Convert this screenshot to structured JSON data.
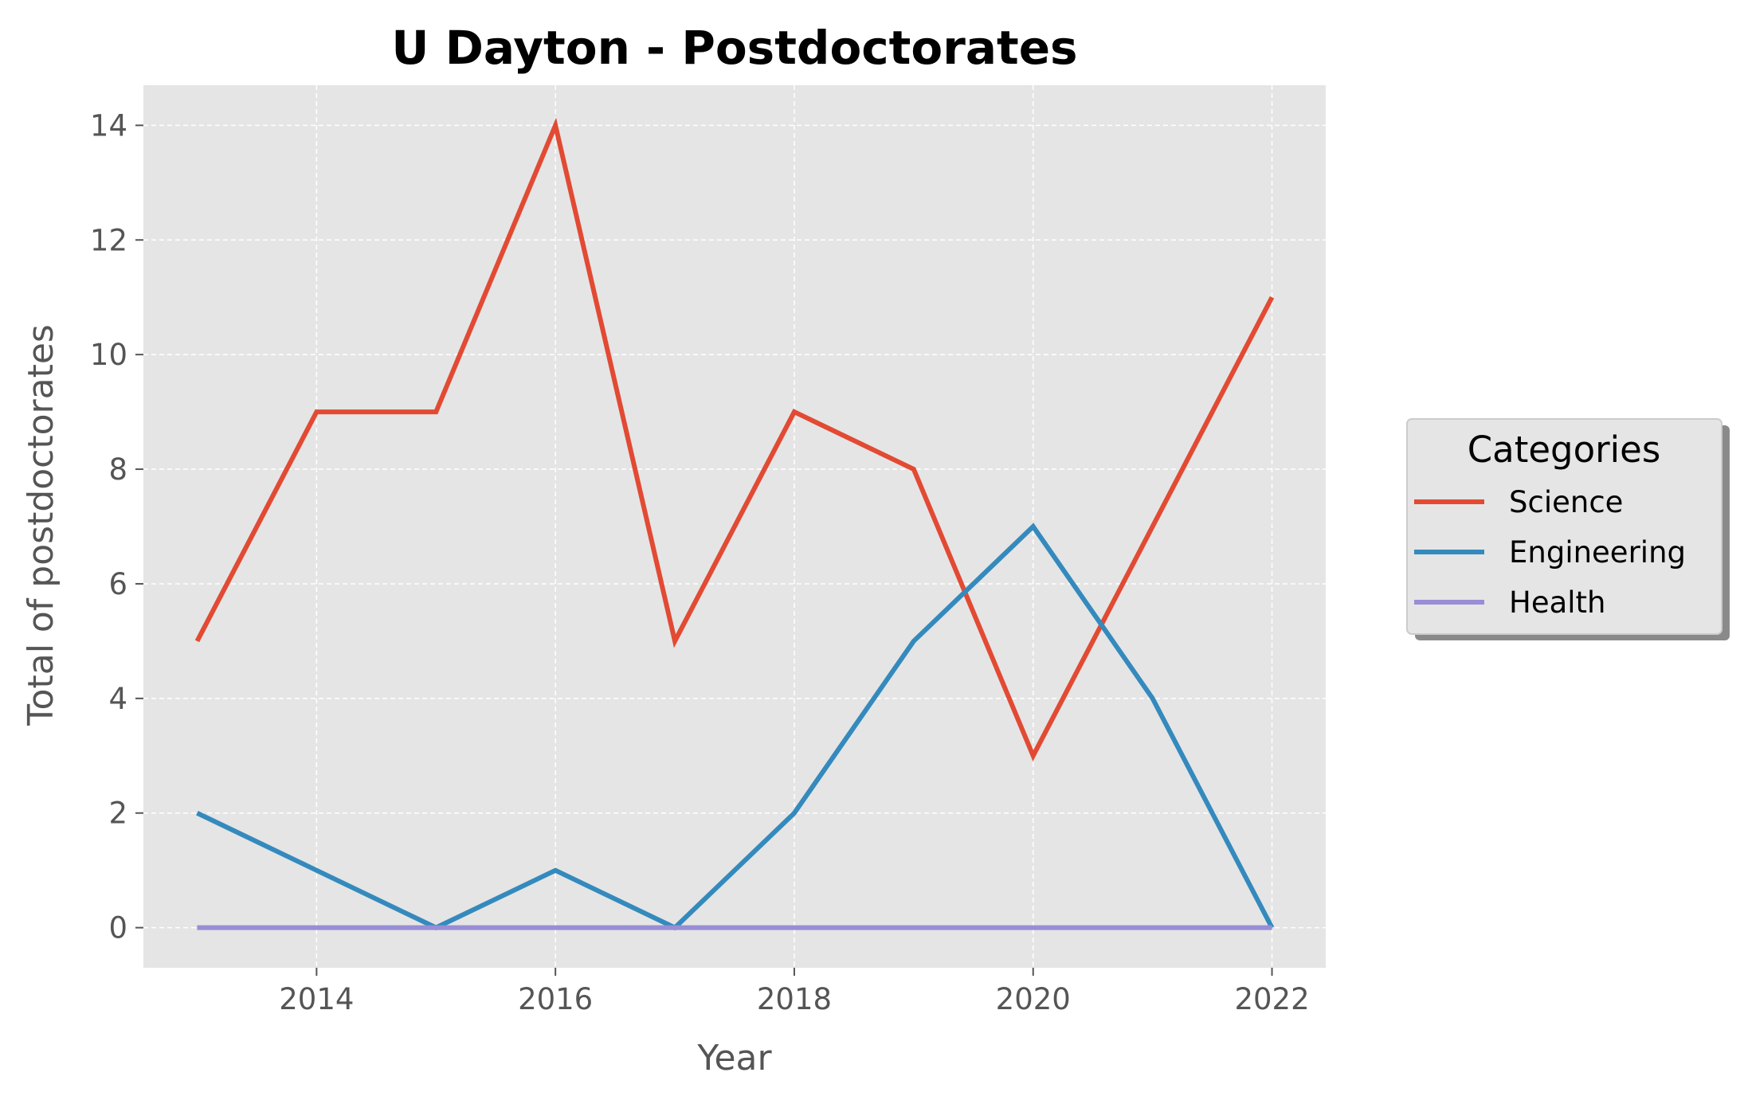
{
  "chart_data": {
    "type": "line",
    "title": "U Dayton - Postdoctorates",
    "xlabel": "Year",
    "ylabel": "Total of postdoctorates",
    "x": [
      2013,
      2014,
      2015,
      2016,
      2017,
      2018,
      2019,
      2020,
      2021,
      2022
    ],
    "xticks": [
      2014,
      2016,
      2018,
      2020,
      2022
    ],
    "yticks": [
      0,
      2,
      4,
      6,
      8,
      10,
      12,
      14
    ],
    "xlim": [
      2012.55,
      2022.45
    ],
    "ylim": [
      -0.7,
      14.7
    ],
    "grid": true,
    "legend_title": "Categories",
    "legend_placement": "right, outside plot",
    "background_color": "#e5e5e5",
    "series": [
      {
        "name": "Science",
        "color": "#e24a33",
        "values": [
          5,
          9,
          9,
          14,
          5,
          9,
          8,
          3,
          7,
          11
        ]
      },
      {
        "name": "Engineering",
        "color": "#348abd",
        "values": [
          2,
          1,
          0,
          1,
          0,
          2,
          5,
          7,
          4,
          0
        ]
      },
      {
        "name": "Health",
        "color": "#988ed5",
        "values": [
          0,
          0,
          0,
          0,
          0,
          0,
          0,
          0,
          0,
          0
        ]
      }
    ]
  }
}
